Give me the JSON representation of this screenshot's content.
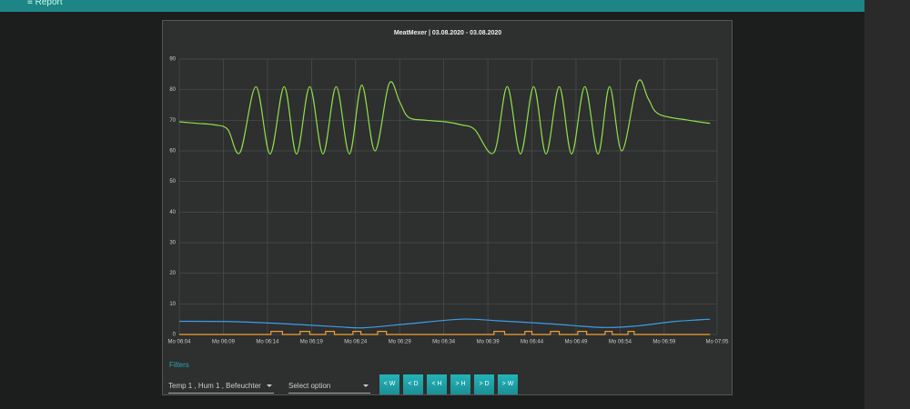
{
  "header": {
    "title": "Report"
  },
  "chart_data": {
    "type": "line",
    "title": "MeatMexer | 03.08.2020 - 03.08.2020",
    "xlim": [
      364,
      425
    ],
    "xticks": [
      {
        "value": 364,
        "label": "Mo 06:04"
      },
      {
        "value": 369,
        "label": "Mo 06:09"
      },
      {
        "value": 374,
        "label": "Mo 06:14"
      },
      {
        "value": 379,
        "label": "Mo 06:19"
      },
      {
        "value": 384,
        "label": "Mo 06:24"
      },
      {
        "value": 389,
        "label": "Mo 06:29"
      },
      {
        "value": 394,
        "label": "Mo 06:34"
      },
      {
        "value": 399,
        "label": "Mo 06:39"
      },
      {
        "value": 404,
        "label": "Mo 06:44"
      },
      {
        "value": 409,
        "label": "Mo 06:49"
      },
      {
        "value": 414,
        "label": "Mo 06:54"
      },
      {
        "value": 419,
        "label": "Mo 06:59"
      },
      {
        "value": 425,
        "label": "Mo 07:05"
      }
    ],
    "ylim": [
      0,
      90
    ],
    "yticks": [
      0,
      10,
      20,
      30,
      40,
      50,
      60,
      70,
      80,
      90
    ],
    "grid": true,
    "series": [
      {
        "color": "#8fe04a",
        "smooth": true,
        "x": [
          364,
          366,
          368,
          369.5,
          370.9,
          372.7,
          374.3,
          375.9,
          377.3,
          378.8,
          380.3,
          381.8,
          383.3,
          384.7,
          386.2,
          387.8,
          389,
          390,
          392,
          394.2,
          396,
          397.5,
          399.7,
          401.2,
          402.7,
          404.2,
          405.6,
          407.1,
          408.5,
          410,
          411.5,
          412.8,
          414.2,
          416,
          417.2,
          418.4,
          421.8,
          424.2
        ],
        "values": [
          69.5,
          69,
          68.5,
          67,
          59.5,
          81,
          59,
          81,
          59,
          81,
          59,
          81,
          59,
          81.5,
          60,
          82,
          76,
          71,
          70,
          69.5,
          68.5,
          67,
          59.5,
          81,
          59,
          81,
          59,
          81,
          59,
          81,
          59,
          81,
          60,
          82.5,
          77,
          72,
          70,
          69
        ]
      },
      {
        "color": "#3a9ee8",
        "smooth": true,
        "x": [
          364,
          370,
          376,
          382,
          385,
          390,
          396,
          400,
          406,
          412,
          416,
          420,
          424.2
        ],
        "values": [
          4.3,
          4.2,
          3.5,
          2.5,
          2.2,
          3.5,
          5,
          4.5,
          3.5,
          2.3,
          2.8,
          4.2,
          5
        ]
      },
      {
        "color": "#f0a030",
        "step": true,
        "x": [
          364,
          374.4,
          375.7,
          377.7,
          378.8,
          380.6,
          381.6,
          383.7,
          384.6,
          386.5,
          387.5,
          399.7,
          400.9,
          403.2,
          404,
          406.1,
          407.1,
          409.2,
          410.2,
          412.3,
          413.1,
          414.9,
          415.6,
          424.2
        ],
        "values": [
          0,
          1,
          0,
          1,
          0,
          1,
          0,
          1,
          0,
          1,
          0,
          1,
          0,
          1,
          0,
          1,
          0,
          1,
          0,
          1,
          0,
          1,
          0,
          0
        ]
      }
    ]
  },
  "filters": {
    "title": "Filters",
    "selected": "Temp 1 , Hum 1 , Befeuchter",
    "placeholder": "Select option",
    "buttons": [
      "< W",
      "< D",
      "< H",
      "> H",
      "> D",
      "> W"
    ]
  }
}
